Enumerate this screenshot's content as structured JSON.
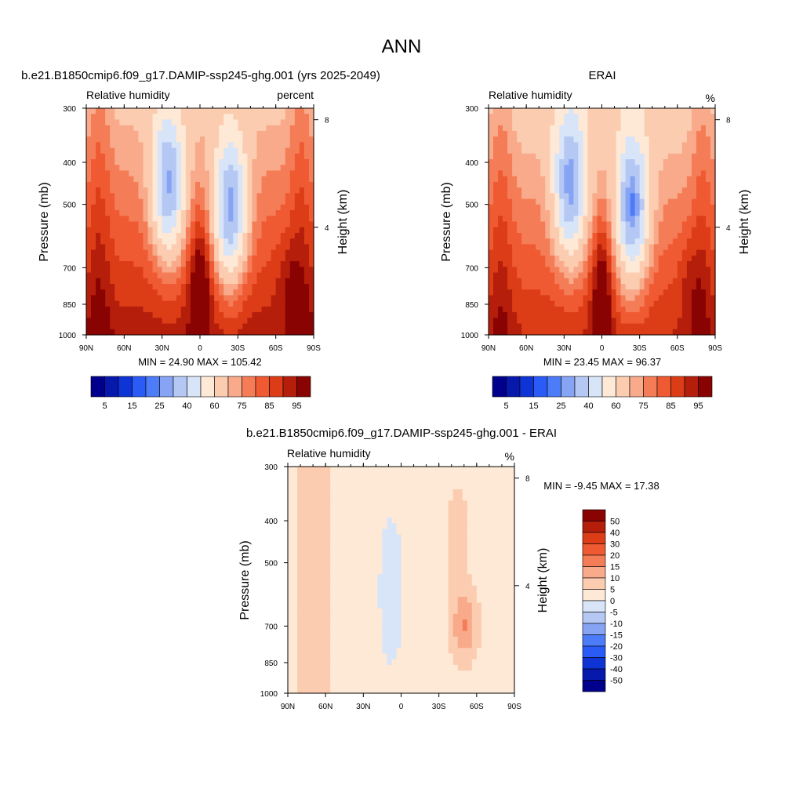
{
  "main_title": "ANN",
  "colors": {
    "abs_levels": [
      "#00008c",
      "#0718ad",
      "#0f34d5",
      "#2b5bf7",
      "#4d7cf9",
      "#86a3f4",
      "#b4c8f3",
      "#d8e4f8",
      "#fde9d6",
      "#fbccb0",
      "#f8aa8a",
      "#f47d57",
      "#ef5a33",
      "#dc3d17",
      "#b41e0b",
      "#8a0303"
    ],
    "diff_levels": [
      "#00008c",
      "#0718ad",
      "#0f34d5",
      "#2b5bf7",
      "#4d7cf9",
      "#86a3f4",
      "#b4c8f3",
      "#d8e4f8",
      "#fde9d6",
      "#fbccb0",
      "#f8aa8a",
      "#f47d57",
      "#ef5a33",
      "#dc3d17",
      "#b41e0b",
      "#8a0303"
    ]
  },
  "panels": [
    {
      "title": "b.e21.B1850cmip6.f09_g17.DAMIP-ssp245-ghg.001 (yrs 2025-2049)",
      "left_label": "Relative humidity",
      "right_label": "percent",
      "ylabel": "Pressure (mb)",
      "ylabel_right": "Height (km)",
      "stats": "MIN =  24.90  MAX = 105.42"
    },
    {
      "title": "ERAI",
      "left_label": "Relative humidity",
      "right_label": "%",
      "ylabel": "Pressure (mb)",
      "ylabel_right": "Height (km)",
      "stats": "MIN =  23.45  MAX =  96.37"
    },
    {
      "title": "b.e21.B1850cmip6.f09_g17.DAMIP-ssp245-ghg.001 - ERAI",
      "left_label": "Relative humidity",
      "right_label": "%",
      "ylabel": "Pressure (mb)",
      "ylabel_right": "Height (km)",
      "stats": "MIN =  -9.45  MAX =  17.38"
    }
  ],
  "abs_colorbar_labels": [
    "5",
    "15",
    "25",
    "40",
    "60",
    "75",
    "85",
    "95"
  ],
  "diff_colorbar_labels": [
    "50",
    "40",
    "30",
    "20",
    "15",
    "10",
    "5",
    "0",
    "-5",
    "-10",
    "-15",
    "-20",
    "-30",
    "-40",
    "-50"
  ],
  "chart_data": [
    {
      "type": "heatmap",
      "title": "b.e21.B1850cmip6.f09_g17.DAMIP-ssp245-ghg.001 (yrs 2025-2049)",
      "variable": "Relative humidity",
      "units": "percent",
      "xlabel": "",
      "ylabel": "Pressure (mb)",
      "ylabel_right": "Height (km)",
      "x_ticks": [
        "90N",
        "60N",
        "30N",
        "0",
        "30S",
        "60S",
        "90S"
      ],
      "y_ticks": [
        300,
        400,
        500,
        700,
        850,
        1000
      ],
      "y_right_ticks": [
        8,
        4
      ],
      "y_scale": "log",
      "y_inverted": true,
      "ylim": [
        300,
        1000
      ],
      "xlim": [
        90,
        -90
      ],
      "contour_levels": [
        5,
        10,
        15,
        20,
        25,
        30,
        40,
        50,
        60,
        70,
        75,
        80,
        85,
        90,
        95
      ],
      "min": 24.9,
      "max": 105.42,
      "features": [
        {
          "lat": 25,
          "p": 450,
          "value": 30
        },
        {
          "lat": -25,
          "p": 520,
          "value": 25
        },
        {
          "lat": 5,
          "p": 420,
          "value": 55
        },
        {
          "lat": 80,
          "p": 950,
          "value": 95
        },
        {
          "lat": -70,
          "p": 850,
          "value": 90
        }
      ]
    },
    {
      "type": "heatmap",
      "title": "ERAI",
      "variable": "Relative humidity",
      "units": "%",
      "xlabel": "",
      "ylabel": "Pressure (mb)",
      "ylabel_right": "Height (km)",
      "x_ticks": [
        "90N",
        "60N",
        "30N",
        "0",
        "30S",
        "60S",
        "90S"
      ],
      "y_ticks": [
        300,
        400,
        500,
        700,
        850,
        1000
      ],
      "y_right_ticks": [
        8,
        4
      ],
      "y_scale": "log",
      "y_inverted": true,
      "ylim": [
        300,
        1000
      ],
      "xlim": [
        90,
        -90
      ],
      "contour_levels": [
        5,
        10,
        15,
        20,
        25,
        30,
        40,
        50,
        60,
        70,
        75,
        80,
        85,
        90,
        95
      ],
      "min": 23.45,
      "max": 96.37,
      "features": [
        {
          "lat": 25,
          "p": 460,
          "value": 32
        },
        {
          "lat": -22,
          "p": 500,
          "value": 24
        },
        {
          "lat": 5,
          "p": 420,
          "value": 55
        },
        {
          "lat": 80,
          "p": 950,
          "value": 90
        },
        {
          "lat": -70,
          "p": 870,
          "value": 88
        }
      ]
    },
    {
      "type": "heatmap",
      "title": "b.e21.B1850cmip6.f09_g17.DAMIP-ssp245-ghg.001 - ERAI",
      "variable": "Relative humidity",
      "units": "%",
      "xlabel": "",
      "ylabel": "Pressure (mb)",
      "ylabel_right": "Height (km)",
      "x_ticks": [
        "90N",
        "60N",
        "30N",
        "0",
        "30S",
        "60S",
        "90S"
      ],
      "y_ticks": [
        300,
        400,
        500,
        700,
        850,
        1000
      ],
      "y_right_ticks": [
        8,
        4
      ],
      "y_scale": "log",
      "y_inverted": true,
      "ylim": [
        300,
        1000
      ],
      "xlim": [
        90,
        -90
      ],
      "contour_levels": [
        -50,
        -40,
        -30,
        -20,
        -15,
        -10,
        -5,
        0,
        5,
        10,
        15,
        20,
        30,
        40,
        50
      ],
      "min": -9.45,
      "max": 17.38,
      "features": [
        {
          "lat": -50,
          "p": 800,
          "value": 15
        },
        {
          "lat": 5,
          "p": 420,
          "value": -5
        },
        {
          "lat": 10,
          "p": 750,
          "value": -5
        },
        {
          "lat": 70,
          "p": 500,
          "value": 6
        },
        {
          "lat": -45,
          "p": 500,
          "value": 6
        }
      ]
    }
  ]
}
